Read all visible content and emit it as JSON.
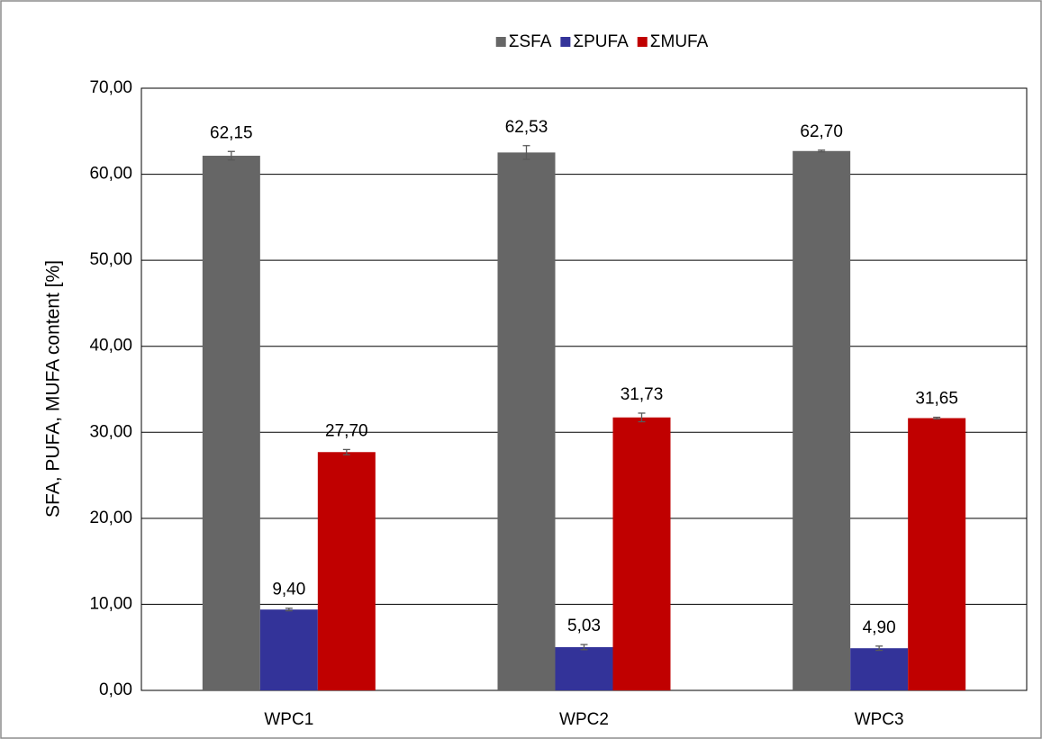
{
  "chart_data": {
    "type": "bar",
    "y_label": "SFA, PUFA, MUFA content [%]",
    "categories": [
      "WPC1",
      "WPC2",
      "WPC3"
    ],
    "series": [
      {
        "name": "ΣSFA",
        "color": "#666666",
        "values": [
          62.15,
          62.53,
          62.7
        ],
        "value_labels": [
          "62,15",
          "62,53",
          "62,70"
        ],
        "errors": [
          0.5,
          0.8,
          0.1
        ]
      },
      {
        "name": "ΣPUFA",
        "color": "#333399",
        "values": [
          9.4,
          5.03,
          4.9
        ],
        "value_labels": [
          "9,40",
          "5,03",
          "4,90"
        ],
        "errors": [
          0.15,
          0.3,
          0.25
        ]
      },
      {
        "name": "ΣMUFA",
        "color": "#c00000",
        "values": [
          27.7,
          31.73,
          31.65
        ],
        "value_labels": [
          "27,70",
          "31,73",
          "31,65"
        ],
        "errors": [
          0.3,
          0.5,
          0.1
        ]
      }
    ],
    "ylim": [
      0,
      70
    ],
    "yticks": [
      {
        "value": 0,
        "label": "0,00"
      },
      {
        "value": 10,
        "label": "10,00"
      },
      {
        "value": 20,
        "label": "20,00"
      },
      {
        "value": 30,
        "label": "30,00"
      },
      {
        "value": 40,
        "label": "40,00"
      },
      {
        "value": 50,
        "label": "50,00"
      },
      {
        "value": 60,
        "label": "60,00"
      },
      {
        "value": 70,
        "label": "70,00"
      }
    ],
    "grid": true,
    "legend": "top"
  }
}
